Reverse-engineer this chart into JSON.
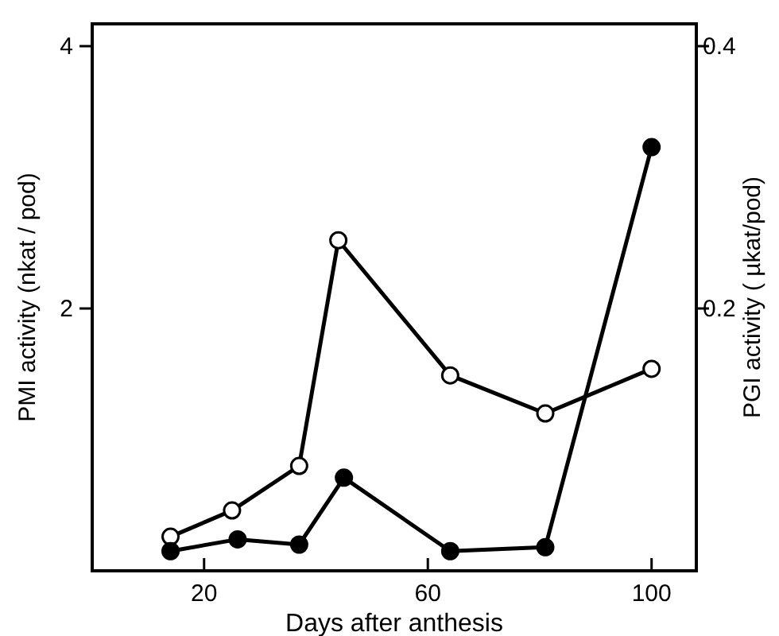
{
  "chart_data": {
    "type": "line",
    "xlabel": "Days after anthesis",
    "ylabel": "PMI activity (nkat / pod)",
    "y2label": "PGI activity ( µkat/pod)",
    "xlim": [
      0,
      108
    ],
    "xticks": [
      20,
      60,
      100
    ],
    "ylim": [
      0,
      4.17
    ],
    "yticks": [
      2,
      4
    ],
    "y2lim": [
      0,
      0.417
    ],
    "y2ticks": [
      0.2,
      0.4
    ],
    "marker": "circle",
    "grid": false,
    "series": [
      {
        "color": "#000000",
        "x": [
          14,
          25,
          37,
          44,
          64,
          81,
          100
        ],
        "values": [
          0.26,
          0.46,
          0.8,
          2.52,
          1.49,
          1.2,
          1.54
        ]
      },
      {
        "color": "#000000",
        "axis": "y2",
        "x": [
          14,
          26,
          37,
          45,
          64,
          81,
          100
        ],
        "values": [
          0.015,
          0.024,
          0.02,
          0.071,
          0.015,
          0.018,
          0.323
        ]
      }
    ]
  }
}
